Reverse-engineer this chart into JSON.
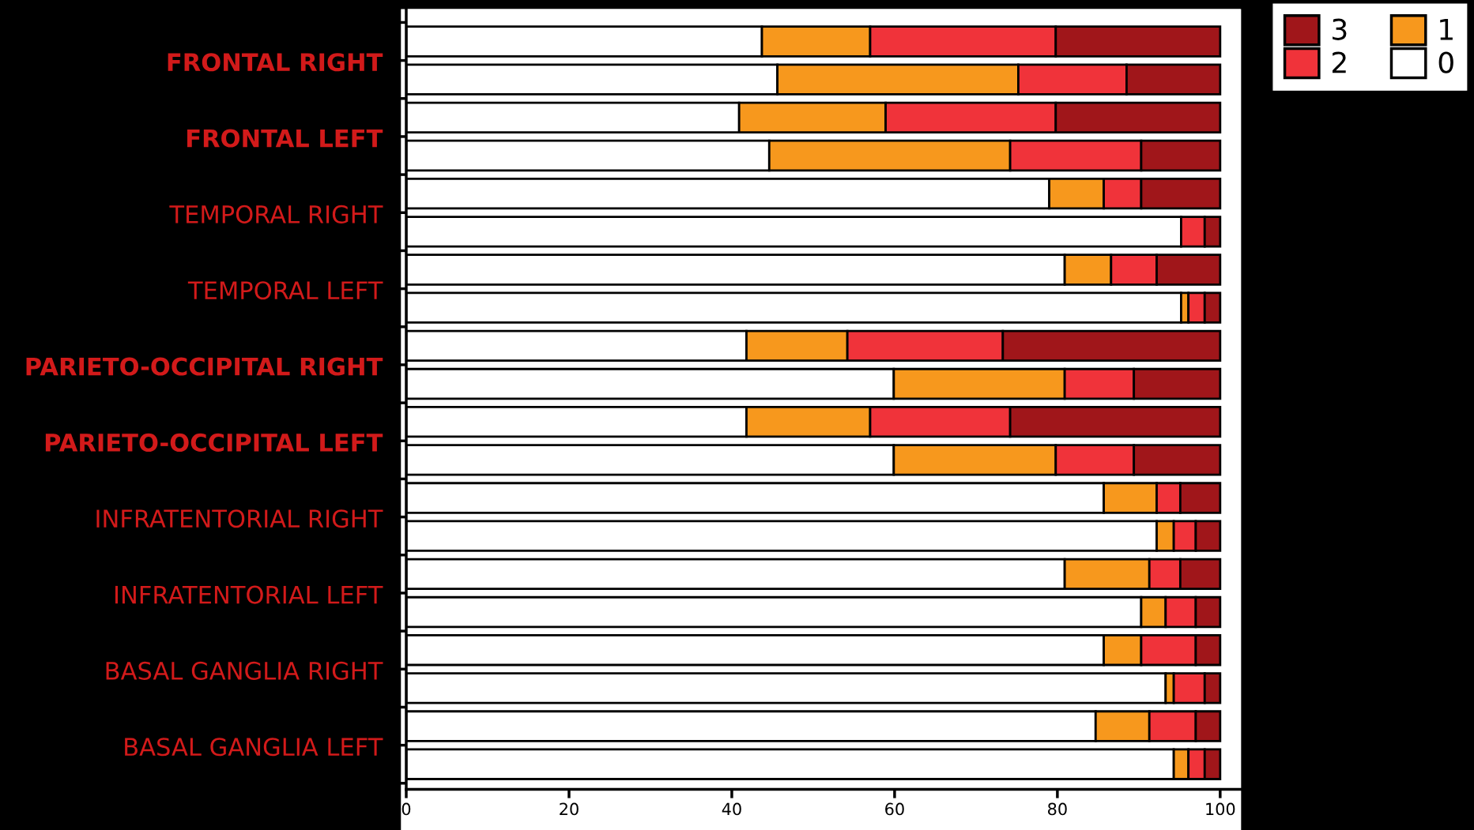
{
  "chart_data": {
    "type": "bar",
    "orientation": "horizontal",
    "stacked": true,
    "categories": [
      "FRONTAL RIGHT",
      null,
      "FRONTAL LEFT",
      null,
      "TEMPORAL RIGHT",
      null,
      "TEMPORAL LEFT",
      null,
      "PARIETO-OCCIPITAL RIGHT",
      null,
      "PARIETO-OCCIPITAL LEFT",
      null,
      "INFRATENTORIAL RIGHT",
      null,
      "INFRATENTORIAL LEFT",
      null,
      "BASAL GANGLIA RIGHT",
      null,
      "BASAL GANGLIA LEFT",
      null
    ],
    "series": [
      {
        "name": "0",
        "color": "#ffffff",
        "values": [
          43.7,
          45.6,
          40.9,
          44.6,
          79.0,
          95.2,
          80.9,
          95.2,
          41.8,
          59.9,
          41.8,
          59.9,
          85.7,
          92.2,
          80.9,
          90.3,
          85.7,
          93.3,
          84.7,
          94.3
        ]
      },
      {
        "name": "1",
        "color": "#f7981d",
        "values": [
          13.3,
          29.6,
          18.0,
          29.6,
          6.7,
          0,
          5.7,
          0.9,
          12.4,
          21.0,
          15.2,
          19.9,
          6.5,
          2.1,
          10.4,
          3.0,
          4.6,
          1.0,
          6.6,
          1.8
        ]
      },
      {
        "name": "2",
        "color": "#f0333a",
        "values": [
          22.8,
          13.3,
          20.9,
          16.1,
          4.6,
          2.9,
          5.6,
          2.0,
          19.1,
          8.5,
          17.2,
          9.6,
          2.9,
          2.7,
          3.8,
          3.7,
          6.7,
          3.8,
          5.7,
          2.0
        ]
      },
      {
        "name": "3",
        "color": "#a0161a",
        "values": [
          20.2,
          11.5,
          20.2,
          9.7,
          9.7,
          1.9,
          7.8,
          1.9,
          26.7,
          10.6,
          25.8,
          10.6,
          4.9,
          3.0,
          4.9,
          3.0,
          3.0,
          1.9,
          3.0,
          1.9
        ]
      }
    ],
    "xlim": [
      0,
      102.5
    ],
    "xticks": [
      0,
      20,
      40,
      60,
      80,
      100
    ],
    "grid": false,
    "legend": "top right"
  }
}
